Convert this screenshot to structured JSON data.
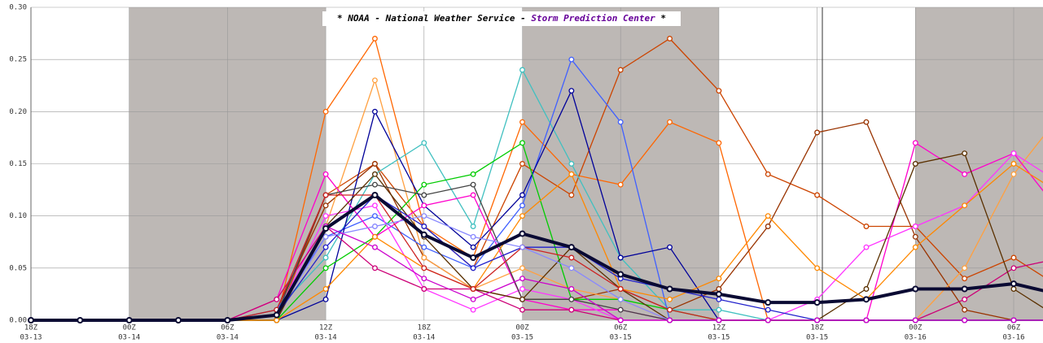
{
  "chart_data": {
    "type": "line",
    "title": [
      "* NOAA - National Weather Service - ",
      "Storm Prediction Center",
      " *"
    ],
    "title_colors": [
      "#000000",
      "#660099",
      "#000000"
    ],
    "categories": [
      [
        "18Z",
        "03-13"
      ],
      null,
      [
        "00Z",
        "03-14"
      ],
      null,
      [
        "06Z",
        "03-14"
      ],
      null,
      [
        "12Z",
        "03-14"
      ],
      null,
      [
        "18Z",
        "03-14"
      ],
      null,
      [
        "00Z",
        "03-15"
      ],
      null,
      [
        "06Z",
        "03-15"
      ],
      null,
      [
        "12Z",
        "03-15"
      ],
      null,
      [
        "18Z",
        "03-15"
      ],
      null,
      [
        "00Z",
        "03-16"
      ],
      null,
      [
        "06Z",
        "03-16"
      ],
      null
    ],
    "ylim": [
      0,
      0.3
    ],
    "yticks": [
      {
        "value": 0,
        "label": "0.00"
      },
      {
        "value": 0.05,
        "label": "0.05"
      },
      {
        "value": 0.1,
        "label": "0.10"
      },
      {
        "value": 0.15,
        "label": "0.15"
      },
      {
        "value": 0.2,
        "label": "0.20"
      },
      {
        "value": 0.25,
        "label": "0.25"
      },
      {
        "value": 0.3,
        "label": "0.30"
      }
    ],
    "grid": true,
    "series": [
      {
        "color": "#ff6600",
        "values": [
          0,
          0,
          0,
          0,
          0,
          0,
          0.2,
          0.27,
          0.09,
          0.06,
          0.19,
          0.14,
          0.13,
          0.19,
          0.17,
          0,
          0,
          0,
          0,
          0,
          0,
          0
        ]
      },
      {
        "color": "#cc4400",
        "values": [
          0,
          0,
          0,
          0,
          0,
          0,
          0.12,
          0.15,
          0.09,
          0.05,
          0.15,
          0.12,
          0.24,
          0.27,
          0.22,
          0.14,
          0.12,
          0.09,
          0.09,
          0.04,
          0.06,
          0.03
        ]
      },
      {
        "color": "#993300",
        "values": [
          0,
          0,
          0,
          0,
          0,
          0.01,
          0.11,
          0.15,
          0.06,
          0.03,
          0.02,
          0.02,
          0.03,
          0.01,
          0.03,
          0.09,
          0.18,
          0.19,
          0.08,
          0.01,
          0,
          0
        ]
      },
      {
        "color": "#ffa040",
        "values": [
          0,
          0,
          0,
          0,
          0,
          0.005,
          0.09,
          0.23,
          0.06,
          0.03,
          0.05,
          0.03,
          0.02,
          0,
          0,
          0,
          0,
          0,
          0,
          0.05,
          0.14,
          0.2
        ]
      },
      {
        "color": "#40c0c0",
        "values": [
          0,
          0,
          0,
          0,
          0,
          0.01,
          0.06,
          0.14,
          0.17,
          0.09,
          0.24,
          0.15,
          0.06,
          0.01,
          0.01,
          0,
          0,
          0,
          0,
          0,
          0,
          0
        ]
      },
      {
        "color": "#4060ff",
        "values": [
          0,
          0,
          0,
          0,
          0,
          0.01,
          0.08,
          0.1,
          0.07,
          0.05,
          0.11,
          0.25,
          0.19,
          0,
          0,
          0,
          0,
          0,
          0,
          0,
          0,
          0
        ]
      },
      {
        "color": "#000099",
        "values": [
          0,
          0,
          0,
          0,
          0,
          0,
          0.02,
          0.2,
          0.11,
          0.07,
          0.12,
          0.22,
          0.06,
          0.07,
          0,
          0,
          0,
          0,
          0,
          0,
          0,
          0
        ]
      },
      {
        "color": "#00cc00",
        "values": [
          0,
          0,
          0,
          0,
          0,
          0,
          0.05,
          0.08,
          0.13,
          0.14,
          0.17,
          0.02,
          0.02,
          0.01,
          0,
          0,
          0,
          0,
          0,
          0,
          0,
          0
        ]
      },
      {
        "color": "#ff00cc",
        "values": [
          0,
          0,
          0,
          0,
          0,
          0.02,
          0.14,
          0.08,
          0.11,
          0.12,
          0.02,
          0.01,
          0.01,
          0,
          0,
          0,
          0,
          0,
          0.17,
          0.14,
          0.16,
          0.1
        ]
      },
      {
        "color": "#ff33ff",
        "values": [
          0,
          0,
          0,
          0,
          0,
          0.005,
          0.1,
          0.11,
          0.03,
          0.01,
          0.03,
          0.02,
          0,
          0,
          0,
          0,
          0.02,
          0.07,
          0.09,
          0.11,
          0.16,
          0.13
        ]
      },
      {
        "color": "#cc0077",
        "values": [
          0,
          0,
          0,
          0,
          0,
          0.02,
          0.09,
          0.05,
          0.03,
          0.03,
          0.01,
          0.01,
          0,
          0,
          0,
          0,
          0,
          0,
          0,
          0.02,
          0.05,
          0.06
        ]
      },
      {
        "color": "#444444",
        "values": [
          0,
          0,
          0,
          0,
          0,
          0.005,
          0.12,
          0.13,
          0.12,
          0.13,
          0.02,
          0.02,
          0.01,
          0,
          0,
          0,
          0,
          0,
          0,
          0,
          0,
          0
        ]
      },
      {
        "color": "#5a3000",
        "values": [
          0,
          0,
          0,
          0,
          0,
          0,
          0.09,
          0.14,
          0.08,
          0.03,
          0.02,
          0.07,
          0.03,
          0,
          0,
          0,
          0,
          0.03,
          0.15,
          0.16,
          0.03,
          0
        ]
      },
      {
        "color": "#ff8800",
        "values": [
          0,
          0,
          0,
          0,
          0,
          0,
          0.03,
          0.08,
          0.05,
          0.03,
          0.1,
          0.14,
          0.03,
          0.02,
          0.04,
          0.1,
          0.05,
          0.02,
          0.07,
          0.11,
          0.15,
          0.12
        ]
      },
      {
        "color": "#2020cc",
        "values": [
          0,
          0,
          0,
          0,
          0,
          0.005,
          0.07,
          0.12,
          0.09,
          0.05,
          0.07,
          0.07,
          0.04,
          0.03,
          0.02,
          0.01,
          0,
          0,
          0,
          0,
          0,
          0
        ]
      },
      {
        "color": "#cc2222",
        "values": [
          0,
          0,
          0,
          0,
          0,
          0.01,
          0.12,
          0.12,
          0.05,
          0.03,
          0.07,
          0.06,
          0.03,
          0.01,
          0,
          0,
          0,
          0,
          0,
          0,
          0,
          0
        ]
      },
      {
        "color": "#8888ff",
        "values": [
          0,
          0,
          0,
          0,
          0,
          0.005,
          0.08,
          0.09,
          0.1,
          0.08,
          0.07,
          0.05,
          0.02,
          0,
          0,
          0,
          0,
          0,
          0,
          0,
          0,
          0
        ]
      },
      {
        "color": "#cc00cc",
        "values": [
          0,
          0,
          0,
          0,
          0,
          0.005,
          0.09,
          0.07,
          0.04,
          0.02,
          0.04,
          0.03,
          0,
          0,
          0,
          0,
          0,
          0,
          0,
          0,
          0,
          0
        ]
      },
      {
        "color": "#0a0a33",
        "width": 4,
        "values": [
          0,
          0,
          0,
          0,
          0,
          0.005,
          0.088,
          0.12,
          0.082,
          0.06,
          0.083,
          0.07,
          0.044,
          0.03,
          0.025,
          0.017,
          0.017,
          0.02,
          0.03,
          0.03,
          0.035,
          0.024
        ]
      }
    ]
  }
}
